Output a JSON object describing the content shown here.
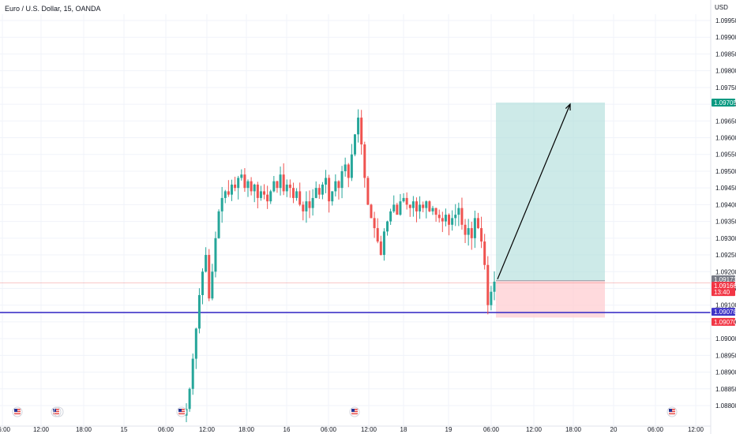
{
  "header": {
    "symbol_title": "Euro / U.S. Dollar, 15, OANDA",
    "currency": "USD"
  },
  "colors": {
    "up": "#26a69a",
    "down": "#ef5350",
    "grid": "#f0f3fa",
    "support_line": "#3f33c7",
    "target_zone": "#b2dfdb",
    "stop_zone": "#ffcdd2",
    "arrow": "#000000",
    "label_target_bg": "#089981",
    "label_entry_bg": "#787b86",
    "label_last_bg": "#f23645",
    "label_support_bg": "#3f33c7",
    "label_stop_bg": "#f23645"
  },
  "chart_data": {
    "type": "candlestick",
    "y_ticks": [
      "1.09950",
      "1.09900",
      "1.09850",
      "1.09800",
      "1.09750",
      "1.09700",
      "1.09650",
      "1.09600",
      "1.09550",
      "1.09500",
      "1.09450",
      "1.09400",
      "1.09350",
      "1.09300",
      "1.09250",
      "1.09200",
      "1.09150",
      "1.09100",
      "1.09050",
      "1.09000",
      "1.08950",
      "1.08900",
      "1.08850",
      "1.08800"
    ],
    "x_ticks": [
      "06:00",
      "12:00",
      "18:00",
      "15",
      "06:00",
      "12:00",
      "18:00",
      "16",
      "06:00",
      "12:00",
      "18",
      "19",
      "06:00",
      "12:00",
      "18:00",
      "20",
      "06:00",
      "12:00"
    ],
    "ylim": [
      1.0878,
      1.1001
    ],
    "grid": true,
    "price_labels": {
      "target": "1.09705",
      "entry": "1.09173",
      "last": "1.09166",
      "countdown": "13:40",
      "support": "1.09078",
      "stop": "1.09070"
    },
    "support_level": 1.09078,
    "position": {
      "direction": "long",
      "entry": 1.09173,
      "target": 1.09705,
      "stop": 1.0907
    },
    "events": [
      "US",
      "US",
      "US",
      "US",
      "US"
    ],
    "path_points": [
      [
        1.0879,
        1
      ],
      [
        1.0885,
        2
      ],
      [
        1.0894,
        3
      ],
      [
        1.0903,
        4
      ],
      [
        1.0913,
        5
      ],
      [
        1.092,
        6
      ],
      [
        1.0925,
        7
      ],
      [
        1.0912,
        8
      ],
      [
        1.092,
        9
      ],
      [
        1.093,
        10
      ],
      [
        1.0938,
        11
      ],
      [
        1.0942,
        12
      ],
      [
        1.0944,
        13
      ],
      [
        1.0943,
        14
      ],
      [
        1.0946,
        15
      ],
      [
        1.0945,
        16
      ],
      [
        1.0948,
        17
      ],
      [
        1.0949,
        18
      ],
      [
        1.0945,
        19
      ],
      [
        1.0947,
        20
      ],
      [
        1.0944,
        21
      ],
      [
        1.0946,
        22
      ],
      [
        1.0942,
        23
      ],
      [
        1.0944,
        24
      ],
      [
        1.0943,
        25
      ],
      [
        1.0941,
        26
      ],
      [
        1.0944,
        27
      ],
      [
        1.0947,
        28
      ],
      [
        1.0945,
        29
      ],
      [
        1.0949,
        30
      ],
      [
        1.0944,
        31
      ],
      [
        1.0946,
        32
      ],
      [
        1.0945,
        33
      ],
      [
        1.0942,
        34
      ],
      [
        1.0944,
        35
      ],
      [
        1.094,
        36
      ],
      [
        1.0938,
        37
      ],
      [
        1.0941,
        38
      ],
      [
        1.0939,
        39
      ],
      [
        1.0942,
        40
      ],
      [
        1.0945,
        41
      ],
      [
        1.0943,
        42
      ],
      [
        1.0946,
        43
      ],
      [
        1.0948,
        44
      ],
      [
        1.0941,
        45
      ],
      [
        1.0944,
        46
      ],
      [
        1.0947,
        47
      ],
      [
        1.0945,
        48
      ],
      [
        1.095,
        49
      ],
      [
        1.0952,
        50
      ],
      [
        1.0948,
        51
      ],
      [
        1.0955,
        52
      ],
      [
        1.0961,
        53
      ],
      [
        1.0966,
        54
      ],
      [
        1.0958,
        55
      ],
      [
        1.0948,
        56
      ],
      [
        1.094,
        57
      ],
      [
        1.0936,
        58
      ],
      [
        1.0933,
        59
      ],
      [
        1.0929,
        60
      ],
      [
        1.0925,
        61
      ],
      [
        1.0932,
        62
      ],
      [
        1.0935,
        63
      ],
      [
        1.0938,
        64
      ],
      [
        1.094,
        65
      ],
      [
        1.0937,
        66
      ],
      [
        1.0941,
        67
      ],
      [
        1.0942,
        68
      ],
      [
        1.094,
        69
      ],
      [
        1.0939,
        70
      ],
      [
        1.0941,
        71
      ],
      [
        1.0938,
        72
      ],
      [
        1.094,
        73
      ],
      [
        1.0939,
        74
      ],
      [
        1.0941,
        75
      ],
      [
        1.0938,
        76
      ],
      [
        1.0939,
        77
      ],
      [
        1.0937,
        78
      ],
      [
        1.0936,
        79
      ],
      [
        1.0935,
        80
      ],
      [
        1.0937,
        81
      ],
      [
        1.0934,
        82
      ],
      [
        1.0936,
        83
      ],
      [
        1.0937,
        84
      ],
      [
        1.0939,
        85
      ],
      [
        1.0934,
        86
      ],
      [
        1.0931,
        87
      ],
      [
        1.0933,
        88
      ],
      [
        1.093,
        89
      ],
      [
        1.0936,
        90
      ],
      [
        1.0933,
        91
      ],
      [
        1.0929,
        92
      ],
      [
        1.0922,
        93
      ],
      [
        1.091,
        94
      ],
      [
        1.0914,
        95
      ],
      [
        1.0917,
        96
      ]
    ]
  }
}
